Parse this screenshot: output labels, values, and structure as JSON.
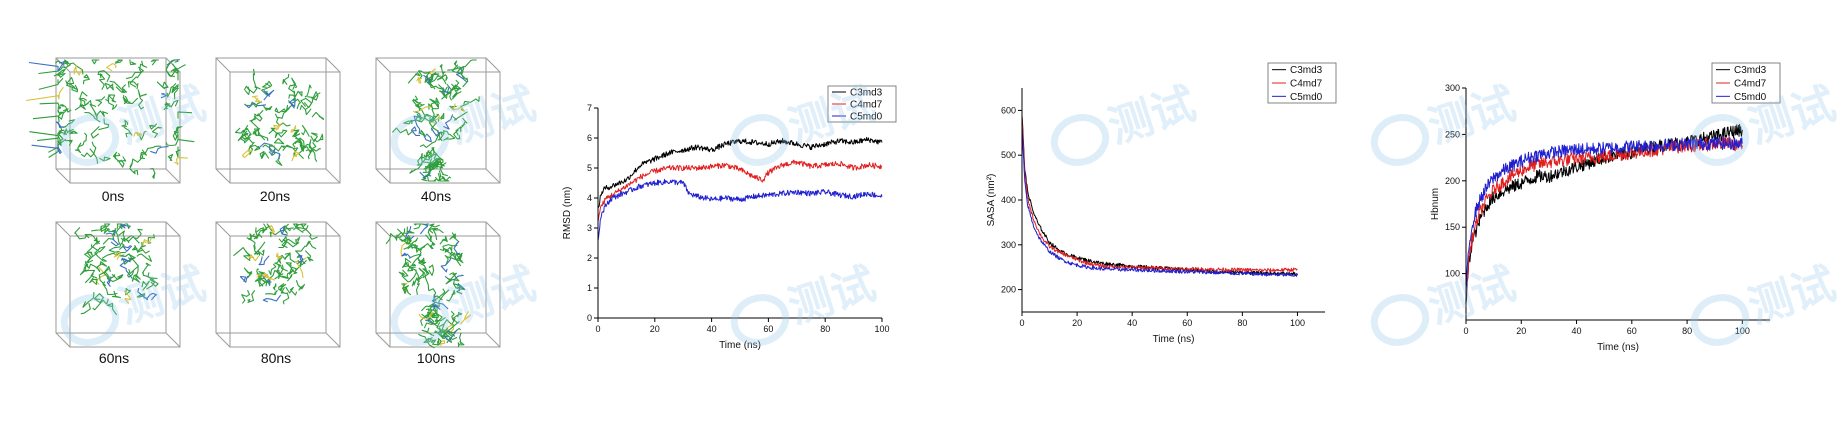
{
  "snapshots": {
    "labels": [
      "0ns",
      "20ns",
      "40ns",
      "60ns",
      "80ns",
      "100ns"
    ],
    "colors": {
      "box": "#9a9a9a",
      "molecule": "#2e9e3a",
      "accent": "#3a6fc0"
    }
  },
  "watermark": {
    "text": "测试",
    "color": "#8fc7ea"
  },
  "chart_data": [
    {
      "type": "line",
      "title": "",
      "xlabel": "Time (ns)",
      "ylabel": "RMSD (nm)",
      "xlim": [
        0,
        100
      ],
      "ylim": [
        0,
        7
      ],
      "xticks": [
        "0",
        "20",
        "40",
        "60",
        "80",
        "100"
      ],
      "yticks": [
        "0",
        "1",
        "2",
        "3",
        "4",
        "5",
        "6",
        "7"
      ],
      "legend": "top-right",
      "series": [
        {
          "name": "C3md3",
          "color": "#000000",
          "points": [
            [
              0,
              3.6
            ],
            [
              1,
              4.1
            ],
            [
              2,
              4.3
            ],
            [
              5,
              4.4
            ],
            [
              10,
              4.6
            ],
            [
              15,
              5.1
            ],
            [
              20,
              5.3
            ],
            [
              25,
              5.5
            ],
            [
              30,
              5.6
            ],
            [
              35,
              5.7
            ],
            [
              40,
              5.6
            ],
            [
              45,
              5.8
            ],
            [
              50,
              5.9
            ],
            [
              55,
              5.85
            ],
            [
              60,
              5.8
            ],
            [
              65,
              5.9
            ],
            [
              70,
              5.8
            ],
            [
              75,
              5.7
            ],
            [
              80,
              5.8
            ],
            [
              85,
              5.9
            ],
            [
              90,
              5.85
            ],
            [
              95,
              5.95
            ],
            [
              100,
              5.85
            ]
          ]
        },
        {
          "name": "C4md7",
          "color": "#e02020",
          "points": [
            [
              0,
              3.3
            ],
            [
              1,
              3.7
            ],
            [
              3,
              4.0
            ],
            [
              5,
              4.1
            ],
            [
              10,
              4.4
            ],
            [
              15,
              4.7
            ],
            [
              20,
              4.9
            ],
            [
              25,
              5.0
            ],
            [
              30,
              5.0
            ],
            [
              35,
              5.0
            ],
            [
              40,
              5.05
            ],
            [
              45,
              5.1
            ],
            [
              50,
              4.95
            ],
            [
              55,
              4.7
            ],
            [
              58,
              4.6
            ],
            [
              60,
              4.85
            ],
            [
              65,
              5.1
            ],
            [
              70,
              5.2
            ],
            [
              75,
              5.05
            ],
            [
              80,
              5.1
            ],
            [
              85,
              5.15
            ],
            [
              90,
              5.0
            ],
            [
              95,
              5.1
            ],
            [
              100,
              5.05
            ]
          ]
        },
        {
          "name": "C5md0",
          "color": "#2020d0",
          "points": [
            [
              0,
              2.6
            ],
            [
              1,
              3.4
            ],
            [
              3,
              3.8
            ],
            [
              5,
              4.0
            ],
            [
              10,
              4.2
            ],
            [
              15,
              4.4
            ],
            [
              20,
              4.5
            ],
            [
              25,
              4.55
            ],
            [
              30,
              4.5
            ],
            [
              32,
              4.15
            ],
            [
              35,
              4.05
            ],
            [
              40,
              3.95
            ],
            [
              45,
              4.0
            ],
            [
              50,
              3.95
            ],
            [
              55,
              4.05
            ],
            [
              60,
              4.1
            ],
            [
              65,
              4.15
            ],
            [
              70,
              4.2
            ],
            [
              75,
              4.15
            ],
            [
              80,
              4.2
            ],
            [
              85,
              4.1
            ],
            [
              90,
              4.05
            ],
            [
              95,
              4.15
            ],
            [
              100,
              4.05
            ]
          ]
        }
      ]
    },
    {
      "type": "line",
      "title": "",
      "xlabel": "Time (ns)",
      "ylabel": "SASA (nm²)",
      "xlim": [
        0,
        110
      ],
      "ylim": [
        150,
        650
      ],
      "xticks": [
        "0",
        "20",
        "40",
        "60",
        "80",
        "100"
      ],
      "yticks": [
        "200",
        "300",
        "400",
        "500",
        "600"
      ],
      "legend": "top-right",
      "series": [
        {
          "name": "C3md3",
          "color": "#000000",
          "points": [
            [
              0,
              590
            ],
            [
              1,
              470
            ],
            [
              2,
              420
            ],
            [
              4,
              375
            ],
            [
              6,
              345
            ],
            [
              8,
              325
            ],
            [
              10,
              305
            ],
            [
              14,
              285
            ],
            [
              18,
              275
            ],
            [
              22,
              268
            ],
            [
              26,
              262
            ],
            [
              30,
              258
            ],
            [
              40,
              252
            ],
            [
              50,
              248
            ],
            [
              60,
              244
            ],
            [
              70,
              240
            ],
            [
              80,
              238
            ],
            [
              90,
              236
            ],
            [
              100,
              235
            ]
          ]
        },
        {
          "name": "C4md7",
          "color": "#e02020",
          "points": [
            [
              0,
              580
            ],
            [
              1,
              460
            ],
            [
              2,
              405
            ],
            [
              4,
              360
            ],
            [
              6,
              330
            ],
            [
              8,
              310
            ],
            [
              10,
              296
            ],
            [
              14,
              282
            ],
            [
              18,
              272
            ],
            [
              22,
              262
            ],
            [
              26,
              256
            ],
            [
              30,
              252
            ],
            [
              40,
              250
            ],
            [
              50,
              248
            ],
            [
              60,
              246
            ],
            [
              70,
              245
            ],
            [
              80,
              244
            ],
            [
              90,
              243
            ],
            [
              100,
              245
            ]
          ]
        },
        {
          "name": "C5md0",
          "color": "#2020d0",
          "points": [
            [
              0,
              560
            ],
            [
              1,
              440
            ],
            [
              2,
              390
            ],
            [
              4,
              345
            ],
            [
              6,
              318
            ],
            [
              8,
              300
            ],
            [
              10,
              285
            ],
            [
              14,
              268
            ],
            [
              18,
              258
            ],
            [
              22,
              252
            ],
            [
              26,
              248
            ],
            [
              30,
              246
            ],
            [
              40,
              244
            ],
            [
              50,
              242
            ],
            [
              60,
              240
            ],
            [
              70,
              238
            ],
            [
              80,
              236
            ],
            [
              90,
              234
            ],
            [
              100,
              232
            ]
          ]
        }
      ]
    },
    {
      "type": "line",
      "title": "",
      "xlabel": "Time (ns)",
      "ylabel": "Hbnum",
      "xlim": [
        0,
        110
      ],
      "ylim": [
        50,
        300
      ],
      "xticks": [
        "0",
        "20",
        "40",
        "60",
        "80",
        "100"
      ],
      "yticks": [
        "100",
        "150",
        "200",
        "250",
        "300"
      ],
      "legend": "top-right",
      "series": [
        {
          "name": "C3md3",
          "color": "#000000",
          "points": [
            [
              0,
              70
            ],
            [
              1,
              110
            ],
            [
              2,
              130
            ],
            [
              4,
              150
            ],
            [
              6,
              165
            ],
            [
              8,
              175
            ],
            [
              10,
              182
            ],
            [
              14,
              190
            ],
            [
              18,
              195
            ],
            [
              22,
              200
            ],
            [
              26,
              205
            ],
            [
              30,
              205
            ],
            [
              35,
              210
            ],
            [
              40,
              215
            ],
            [
              45,
              220
            ],
            [
              50,
              225
            ],
            [
              55,
              228
            ],
            [
              60,
              230
            ],
            [
              65,
              235
            ],
            [
              70,
              238
            ],
            [
              75,
              240
            ],
            [
              80,
              242
            ],
            [
              85,
              245
            ],
            [
              90,
              248
            ],
            [
              95,
              252
            ],
            [
              100,
              255
            ]
          ]
        },
        {
          "name": "C4md7",
          "color": "#e02020",
          "points": [
            [
              0,
              75
            ],
            [
              1,
              115
            ],
            [
              2,
              135
            ],
            [
              4,
              158
            ],
            [
              6,
              172
            ],
            [
              8,
              182
            ],
            [
              10,
              190
            ],
            [
              14,
              200
            ],
            [
              18,
              208
            ],
            [
              22,
              214
            ],
            [
              26,
              218
            ],
            [
              30,
              220
            ],
            [
              35,
              222
            ],
            [
              40,
              224
            ],
            [
              45,
              225
            ],
            [
              50,
              226
            ],
            [
              55,
              228
            ],
            [
              60,
              230
            ],
            [
              65,
              232
            ],
            [
              70,
              234
            ],
            [
              75,
              236
            ],
            [
              80,
              238
            ],
            [
              85,
              238
            ],
            [
              90,
              240
            ],
            [
              95,
              240
            ],
            [
              100,
              238
            ]
          ]
        },
        {
          "name": "C5md0",
          "color": "#2020d0",
          "points": [
            [
              0,
              80
            ],
            [
              1,
              125
            ],
            [
              2,
              150
            ],
            [
              4,
              172
            ],
            [
              6,
              185
            ],
            [
              8,
              195
            ],
            [
              10,
              203
            ],
            [
              14,
              212
            ],
            [
              18,
              218
            ],
            [
              22,
              224
            ],
            [
              26,
              228
            ],
            [
              30,
              230
            ],
            [
              35,
              232
            ],
            [
              40,
              234
            ],
            [
              45,
              234
            ],
            [
              50,
              235
            ],
            [
              55,
              236
            ],
            [
              60,
              237
            ],
            [
              65,
              238
            ],
            [
              70,
              238
            ],
            [
              75,
              239
            ],
            [
              80,
              240
            ],
            [
              85,
              240
            ],
            [
              90,
              241
            ],
            [
              95,
              240
            ],
            [
              100,
              240
            ]
          ]
        }
      ]
    }
  ]
}
